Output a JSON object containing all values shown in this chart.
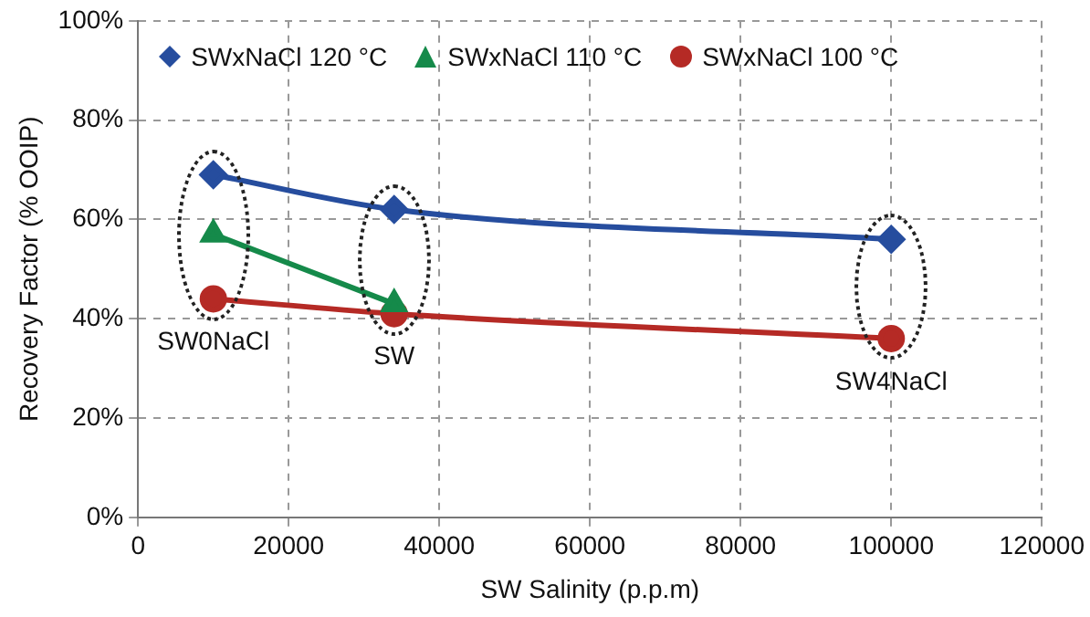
{
  "chart_data": {
    "type": "line",
    "xlabel": "SW Salinity (p.p.m)",
    "ylabel": "Recovery Factor (% OOIP)",
    "xlim": [
      0,
      120000
    ],
    "xticks": [
      0,
      20000,
      40000,
      60000,
      80000,
      100000,
      120000
    ],
    "ylim": [
      0,
      100
    ],
    "yticks": [
      {
        "value": 0,
        "label": "0%"
      },
      {
        "value": 20,
        "label": "20%"
      },
      {
        "value": 40,
        "label": "40%"
      },
      {
        "value": 60,
        "label": "60%"
      },
      {
        "value": 80,
        "label": "80%"
      },
      {
        "value": 100,
        "label": "100%"
      }
    ],
    "grid": true,
    "legend": "top",
    "line_style": "solid",
    "series": [
      {
        "name": "SWxNaCl 120 °C",
        "color": "#264d9e",
        "marker": "diamond",
        "x": [
          10000,
          34000,
          100000
        ],
        "values": [
          69,
          62,
          56
        ]
      },
      {
        "name": "SWxNaCl 110 °C",
        "color": "#158a4a",
        "marker": "triangle",
        "x": [
          10000,
          34000
        ],
        "values": [
          57,
          43
        ]
      },
      {
        "name": "SWxNaCl 100 °C",
        "color": "#b52a25",
        "marker": "circle",
        "x": [
          10000,
          34000,
          100000
        ],
        "values": [
          44,
          41,
          36
        ]
      }
    ],
    "annotations": [
      "SW0NaCl",
      "SW",
      "SW4NaCl"
    ]
  }
}
